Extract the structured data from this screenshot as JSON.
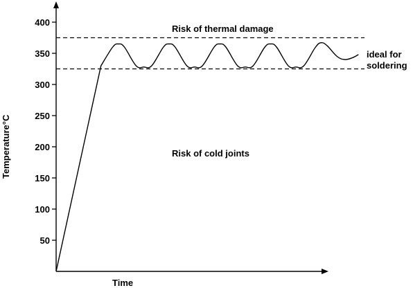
{
  "chart_data": {
    "type": "line",
    "title": "",
    "xlabel": "Time",
    "ylabel": "Temperature°C",
    "ylim": [
      0,
      400
    ],
    "yticks": [
      50,
      100,
      150,
      200,
      250,
      300,
      350,
      400
    ],
    "ytick_labels": [
      "50",
      "100",
      "150",
      "200",
      "250",
      "300",
      "350",
      "400"
    ],
    "grid": false,
    "series": [
      {
        "color": "#000000",
        "points": [
          [
            0,
            0
          ],
          [
            1.15,
            330
          ],
          [
            1.45,
            360
          ],
          [
            1.6,
            365
          ],
          [
            1.75,
            360
          ],
          [
            2.05,
            330
          ],
          [
            2.25,
            328
          ],
          [
            2.45,
            330
          ],
          [
            2.75,
            360
          ],
          [
            2.9,
            365
          ],
          [
            3.05,
            360
          ],
          [
            3.35,
            330
          ],
          [
            3.55,
            328
          ],
          [
            3.75,
            330
          ],
          [
            4.05,
            360
          ],
          [
            4.2,
            365
          ],
          [
            4.35,
            360
          ],
          [
            4.65,
            330
          ],
          [
            4.85,
            328
          ],
          [
            5.05,
            330
          ],
          [
            5.35,
            360
          ],
          [
            5.5,
            365
          ],
          [
            5.65,
            360
          ],
          [
            5.95,
            330
          ],
          [
            6.15,
            328
          ],
          [
            6.35,
            330
          ],
          [
            6.65,
            360
          ],
          [
            6.8,
            367
          ],
          [
            6.95,
            362
          ],
          [
            7.2,
            345
          ],
          [
            7.4,
            340
          ],
          [
            7.6,
            343
          ],
          [
            7.75,
            348
          ]
        ]
      }
    ],
    "reference_lines": [
      {
        "y": 375,
        "style": "dashed",
        "label": "Risk of thermal damage"
      },
      {
        "y": 325,
        "style": "dashed",
        "label": "ideal for soldering",
        "label_lines": [
          "ideal for",
          "soldering"
        ]
      }
    ],
    "annotations": [
      {
        "text": "Risk of cold joints"
      }
    ]
  }
}
